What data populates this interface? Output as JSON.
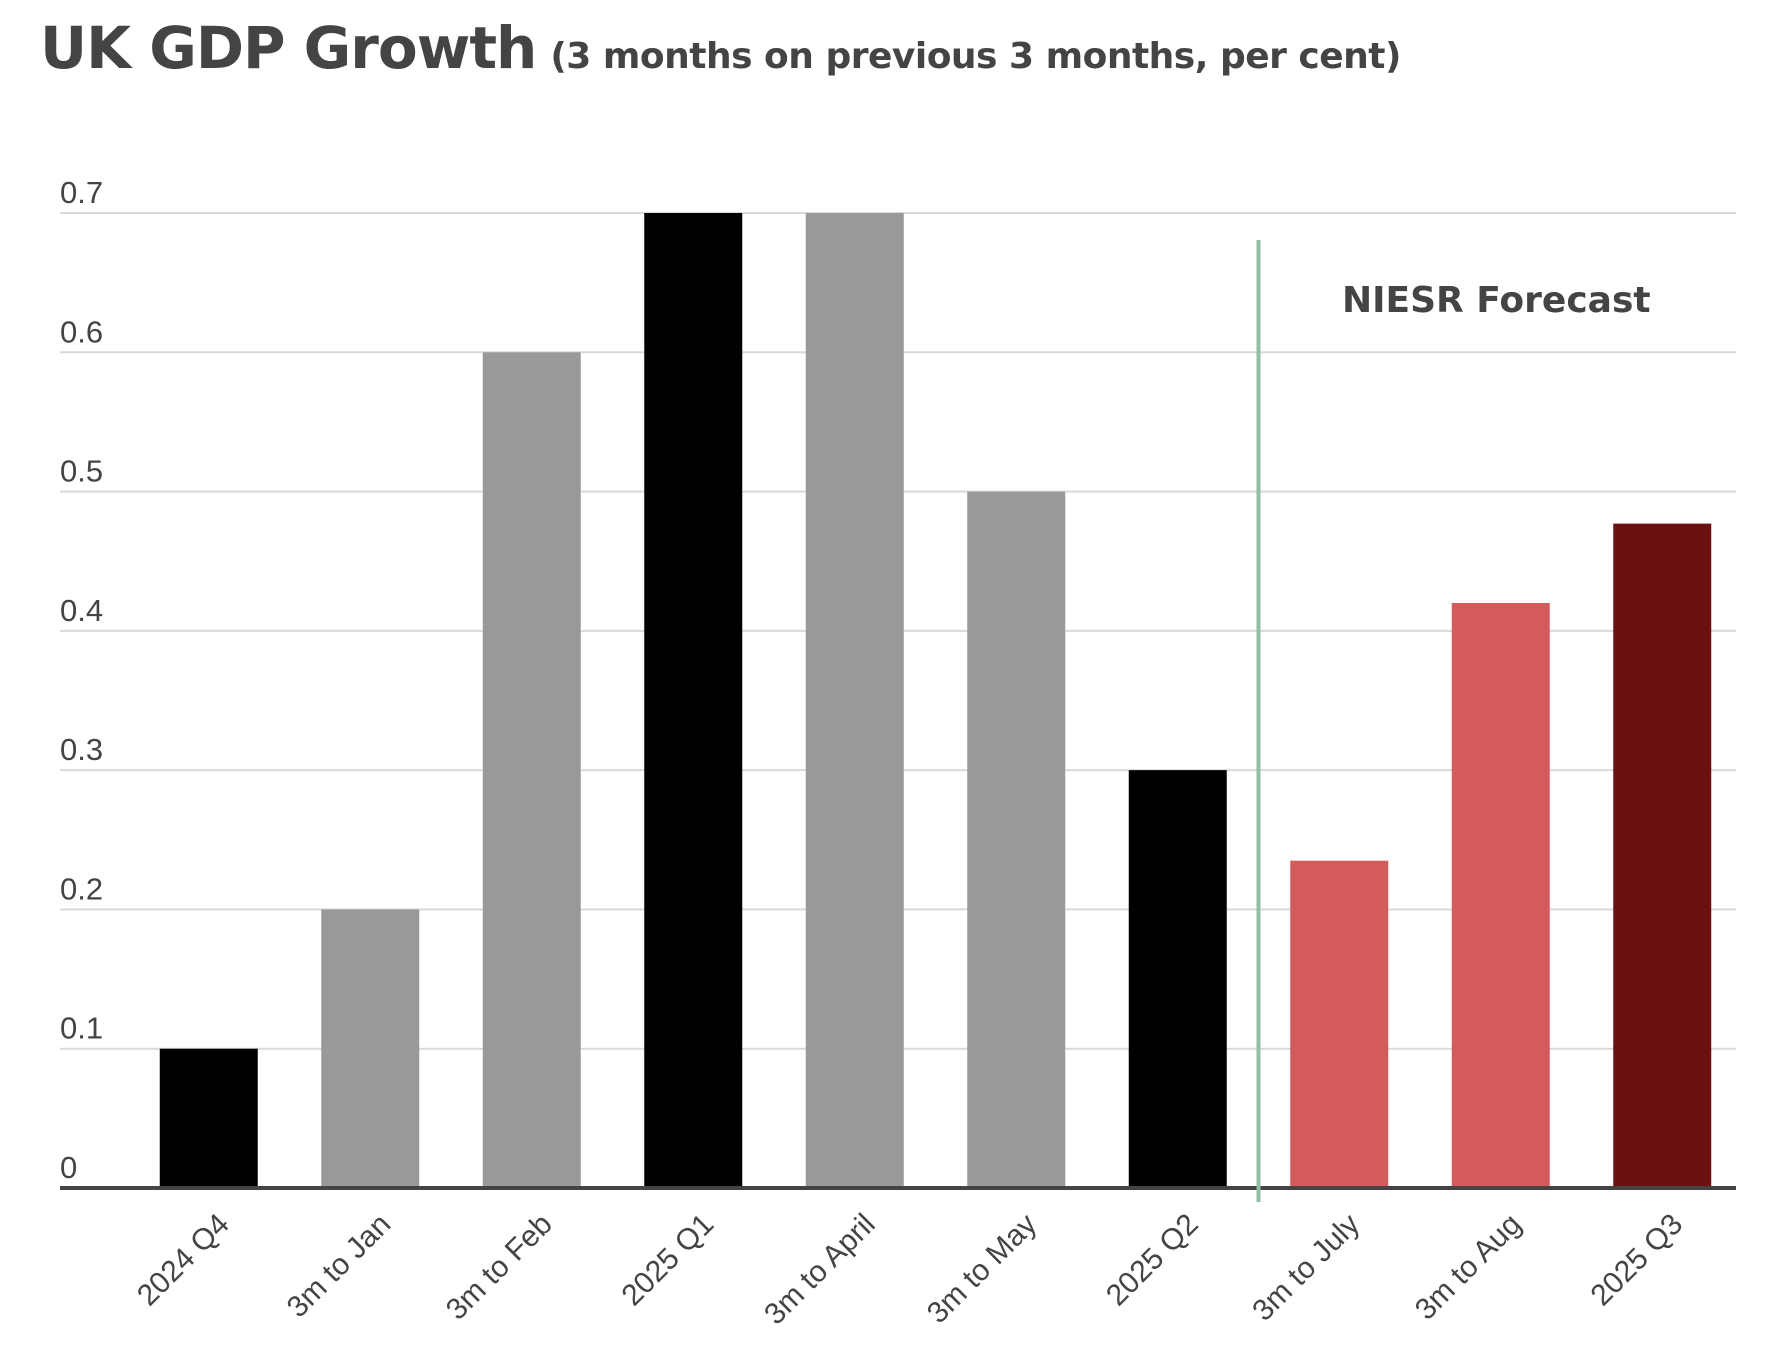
{
  "header": {
    "title": "UK GDP Growth",
    "subtitle": "(3 months on previous 3 months, per cent)"
  },
  "chart_data": {
    "type": "bar",
    "title": "UK GDP Growth",
    "subtitle": "(3 months on previous 3 months, per cent)",
    "categories": [
      "2024 Q4",
      "3m to Jan",
      "3m to Feb",
      "2025 Q1",
      "3m to April",
      "3m to May",
      "2025 Q2",
      "3m to July",
      "3m to Aug",
      "2025 Q3"
    ],
    "values": [
      0.1,
      0.2,
      0.6,
      0.7,
      0.7,
      0.5,
      0.3,
      0.235,
      0.42,
      0.477
    ],
    "bar_colors": [
      "#000000",
      "#999999",
      "#999999",
      "#000000",
      "#999999",
      "#999999",
      "#000000",
      "#d45b5b",
      "#d45b5b",
      "#6b1111"
    ],
    "ylim": [
      0,
      0.7
    ],
    "yticks": [
      "0",
      "0.1",
      "0.2",
      "0.3",
      "0.4",
      "0.5",
      "0.6",
      "0.7"
    ],
    "xlabel": "",
    "ylabel": "",
    "grid": true,
    "annotation": {
      "text": "NIESR Forecast",
      "divider_after_category": "2025 Q2",
      "divider_color": "#8fbfa6"
    },
    "colors": {
      "grid": "#d9d9d9",
      "axis": "#444444",
      "text": "#444444"
    }
  }
}
